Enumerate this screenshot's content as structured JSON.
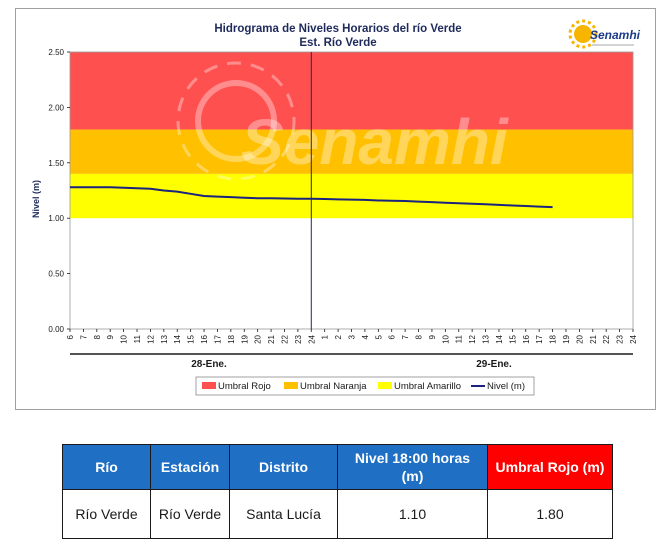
{
  "chart_data": {
    "type": "line",
    "title": "Hidrograma de Niveles Horarios del río Verde",
    "subtitle": "Est. Río Verde",
    "ylabel": "Nivel (m)",
    "ylim": [
      0,
      2.5
    ],
    "y_ticks": [
      "0.00",
      "0.50",
      "1.00",
      "1.50",
      "2.00",
      "2.50"
    ],
    "x_ticks": [
      "6",
      "7",
      "8",
      "9",
      "10",
      "11",
      "12",
      "13",
      "14",
      "15",
      "16",
      "17",
      "18",
      "19",
      "20",
      "21",
      "22",
      "23",
      "24",
      "1",
      "2",
      "3",
      "4",
      "5",
      "6",
      "7",
      "8",
      "9",
      "10",
      "11",
      "12",
      "13",
      "14",
      "15",
      "16",
      "17",
      "18",
      "19",
      "20",
      "21",
      "22",
      "23",
      "24"
    ],
    "date_labels": [
      "28-Ene.",
      "29-Ene."
    ],
    "bands": [
      {
        "name": "Umbral Rojo",
        "from": 1.8,
        "to": 2.5,
        "color": "#ff5050"
      },
      {
        "name": "Umbral Naranja",
        "from": 1.4,
        "to": 1.8,
        "color": "#ffc000"
      },
      {
        "name": "Umbral Amarillo",
        "from": 1.0,
        "to": 1.4,
        "color": "#ffff00"
      }
    ],
    "series": [
      {
        "name": "Nivel (m)",
        "color": "#1a237e",
        "x_hours": [
          0,
          1,
          2,
          3,
          4,
          5,
          6,
          7,
          8,
          9,
          10,
          11,
          12,
          13,
          14,
          15,
          16,
          17,
          18,
          19,
          20,
          21,
          22,
          23,
          24,
          25,
          26,
          27,
          28,
          29,
          30,
          31,
          32,
          33,
          34,
          35,
          36
        ],
        "values": [
          1.28,
          1.28,
          1.28,
          1.28,
          1.275,
          1.27,
          1.265,
          1.25,
          1.24,
          1.22,
          1.2,
          1.195,
          1.19,
          1.185,
          1.18,
          1.18,
          1.178,
          1.175,
          1.175,
          1.173,
          1.17,
          1.168,
          1.165,
          1.16,
          1.158,
          1.155,
          1.15,
          1.145,
          1.14,
          1.135,
          1.13,
          1.125,
          1.12,
          1.115,
          1.11,
          1.105,
          1.1
        ]
      }
    ],
    "grid": false,
    "legend_position": "bottom"
  },
  "watermark": "Senamhi",
  "logo_text": "Senamhi",
  "colors": {
    "red_band": "#ff5050",
    "orange_band": "#ffc000",
    "yellow_band": "#ffff00",
    "line": "#1a237e",
    "header_blue": "#1f6fc4",
    "header_red": "#ff0000"
  },
  "table": {
    "headers": [
      "Río",
      "Estación",
      "Distrito",
      "Nivel 18:00 horas (m)",
      "Umbral Rojo (m)"
    ],
    "row": [
      "Río Verde",
      "Río Verde",
      "Santa Lucía",
      "1.10",
      "1.80"
    ]
  }
}
